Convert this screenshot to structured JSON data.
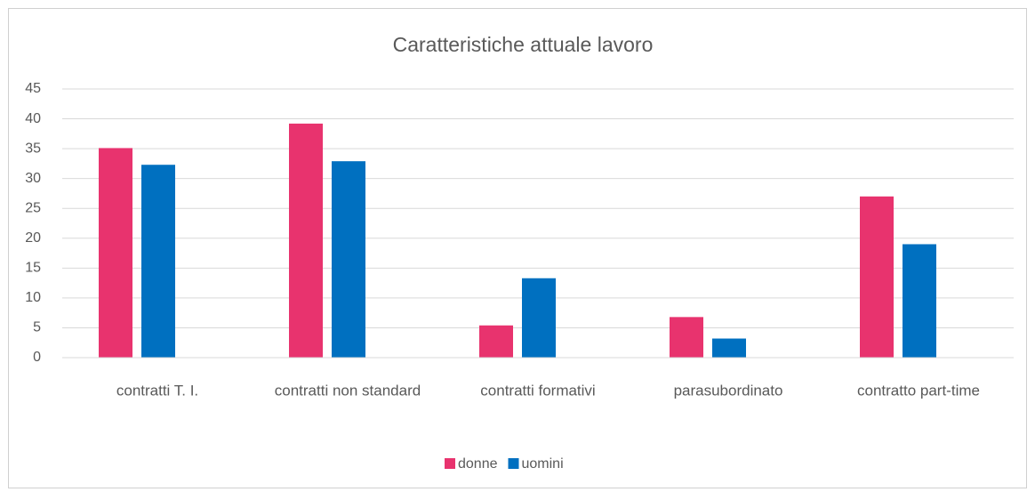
{
  "chart_data": {
    "type": "bar",
    "title": "Caratteristiche attuale lavoro",
    "categories": [
      "contratti T. I.",
      "contratti non standard",
      "contratti formativi",
      "parasubordinato",
      "contratto part-time"
    ],
    "series": [
      {
        "name": "donne",
        "color": "#e8336e",
        "values": [
          35.1,
          39.2,
          5.4,
          6.8,
          27
        ]
      },
      {
        "name": "uomini",
        "color": "#0070c0",
        "values": [
          32.3,
          32.9,
          13.3,
          3.2,
          19
        ]
      }
    ],
    "ylim": [
      0,
      45
    ],
    "yticks": [
      0,
      5,
      10,
      15,
      20,
      25,
      30,
      35,
      40,
      45
    ],
    "grid": true,
    "legend": "bottom"
  }
}
